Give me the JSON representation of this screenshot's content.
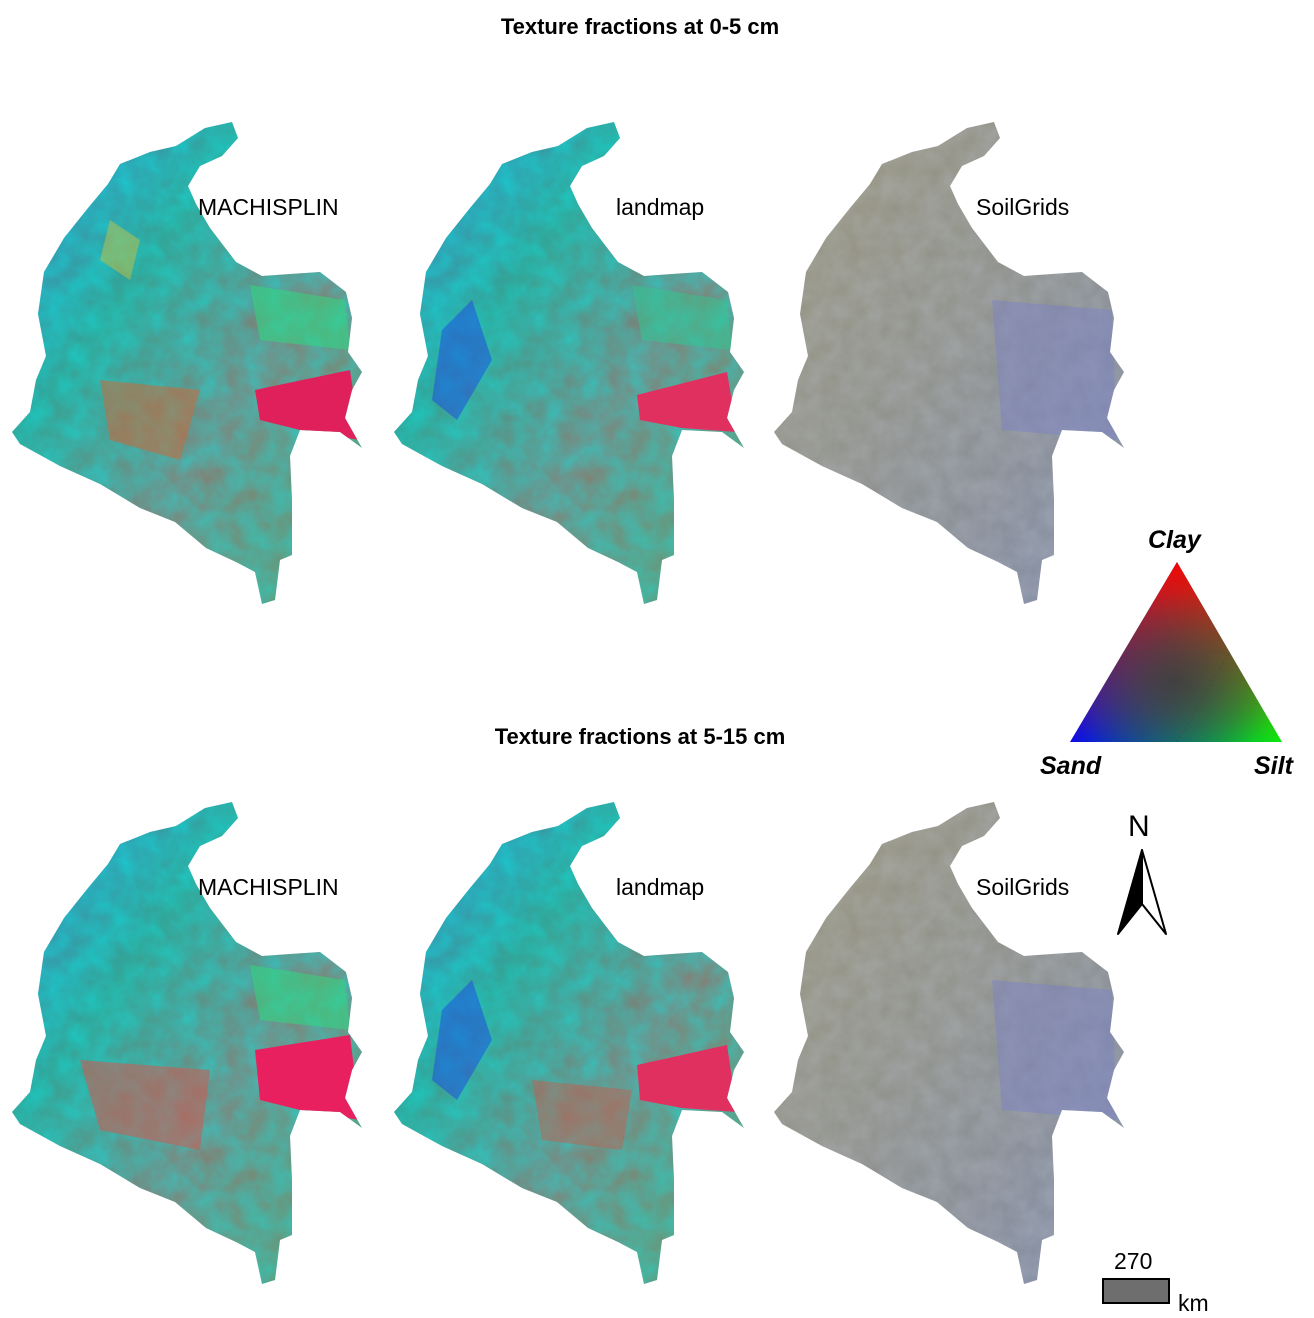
{
  "titles": {
    "top": "Texture fractions at 0-5 cm",
    "bottom": "Texture fractions at 5-15 cm"
  },
  "panels": {
    "top": [
      "MACHISPLIN",
      "landmap",
      "SoilGrids"
    ],
    "bottom": [
      "MACHISPLIN",
      "landmap",
      "SoilGrids"
    ]
  },
  "legend": {
    "clay": "Clay",
    "sand": "Sand",
    "silt": "Silt",
    "colors": {
      "clay": "#ff0000",
      "sand": "#0000ff",
      "silt": "#00ff00"
    }
  },
  "north_arrow": {
    "letter": "N"
  },
  "scale_bar": {
    "value": "270",
    "unit": "km"
  }
}
